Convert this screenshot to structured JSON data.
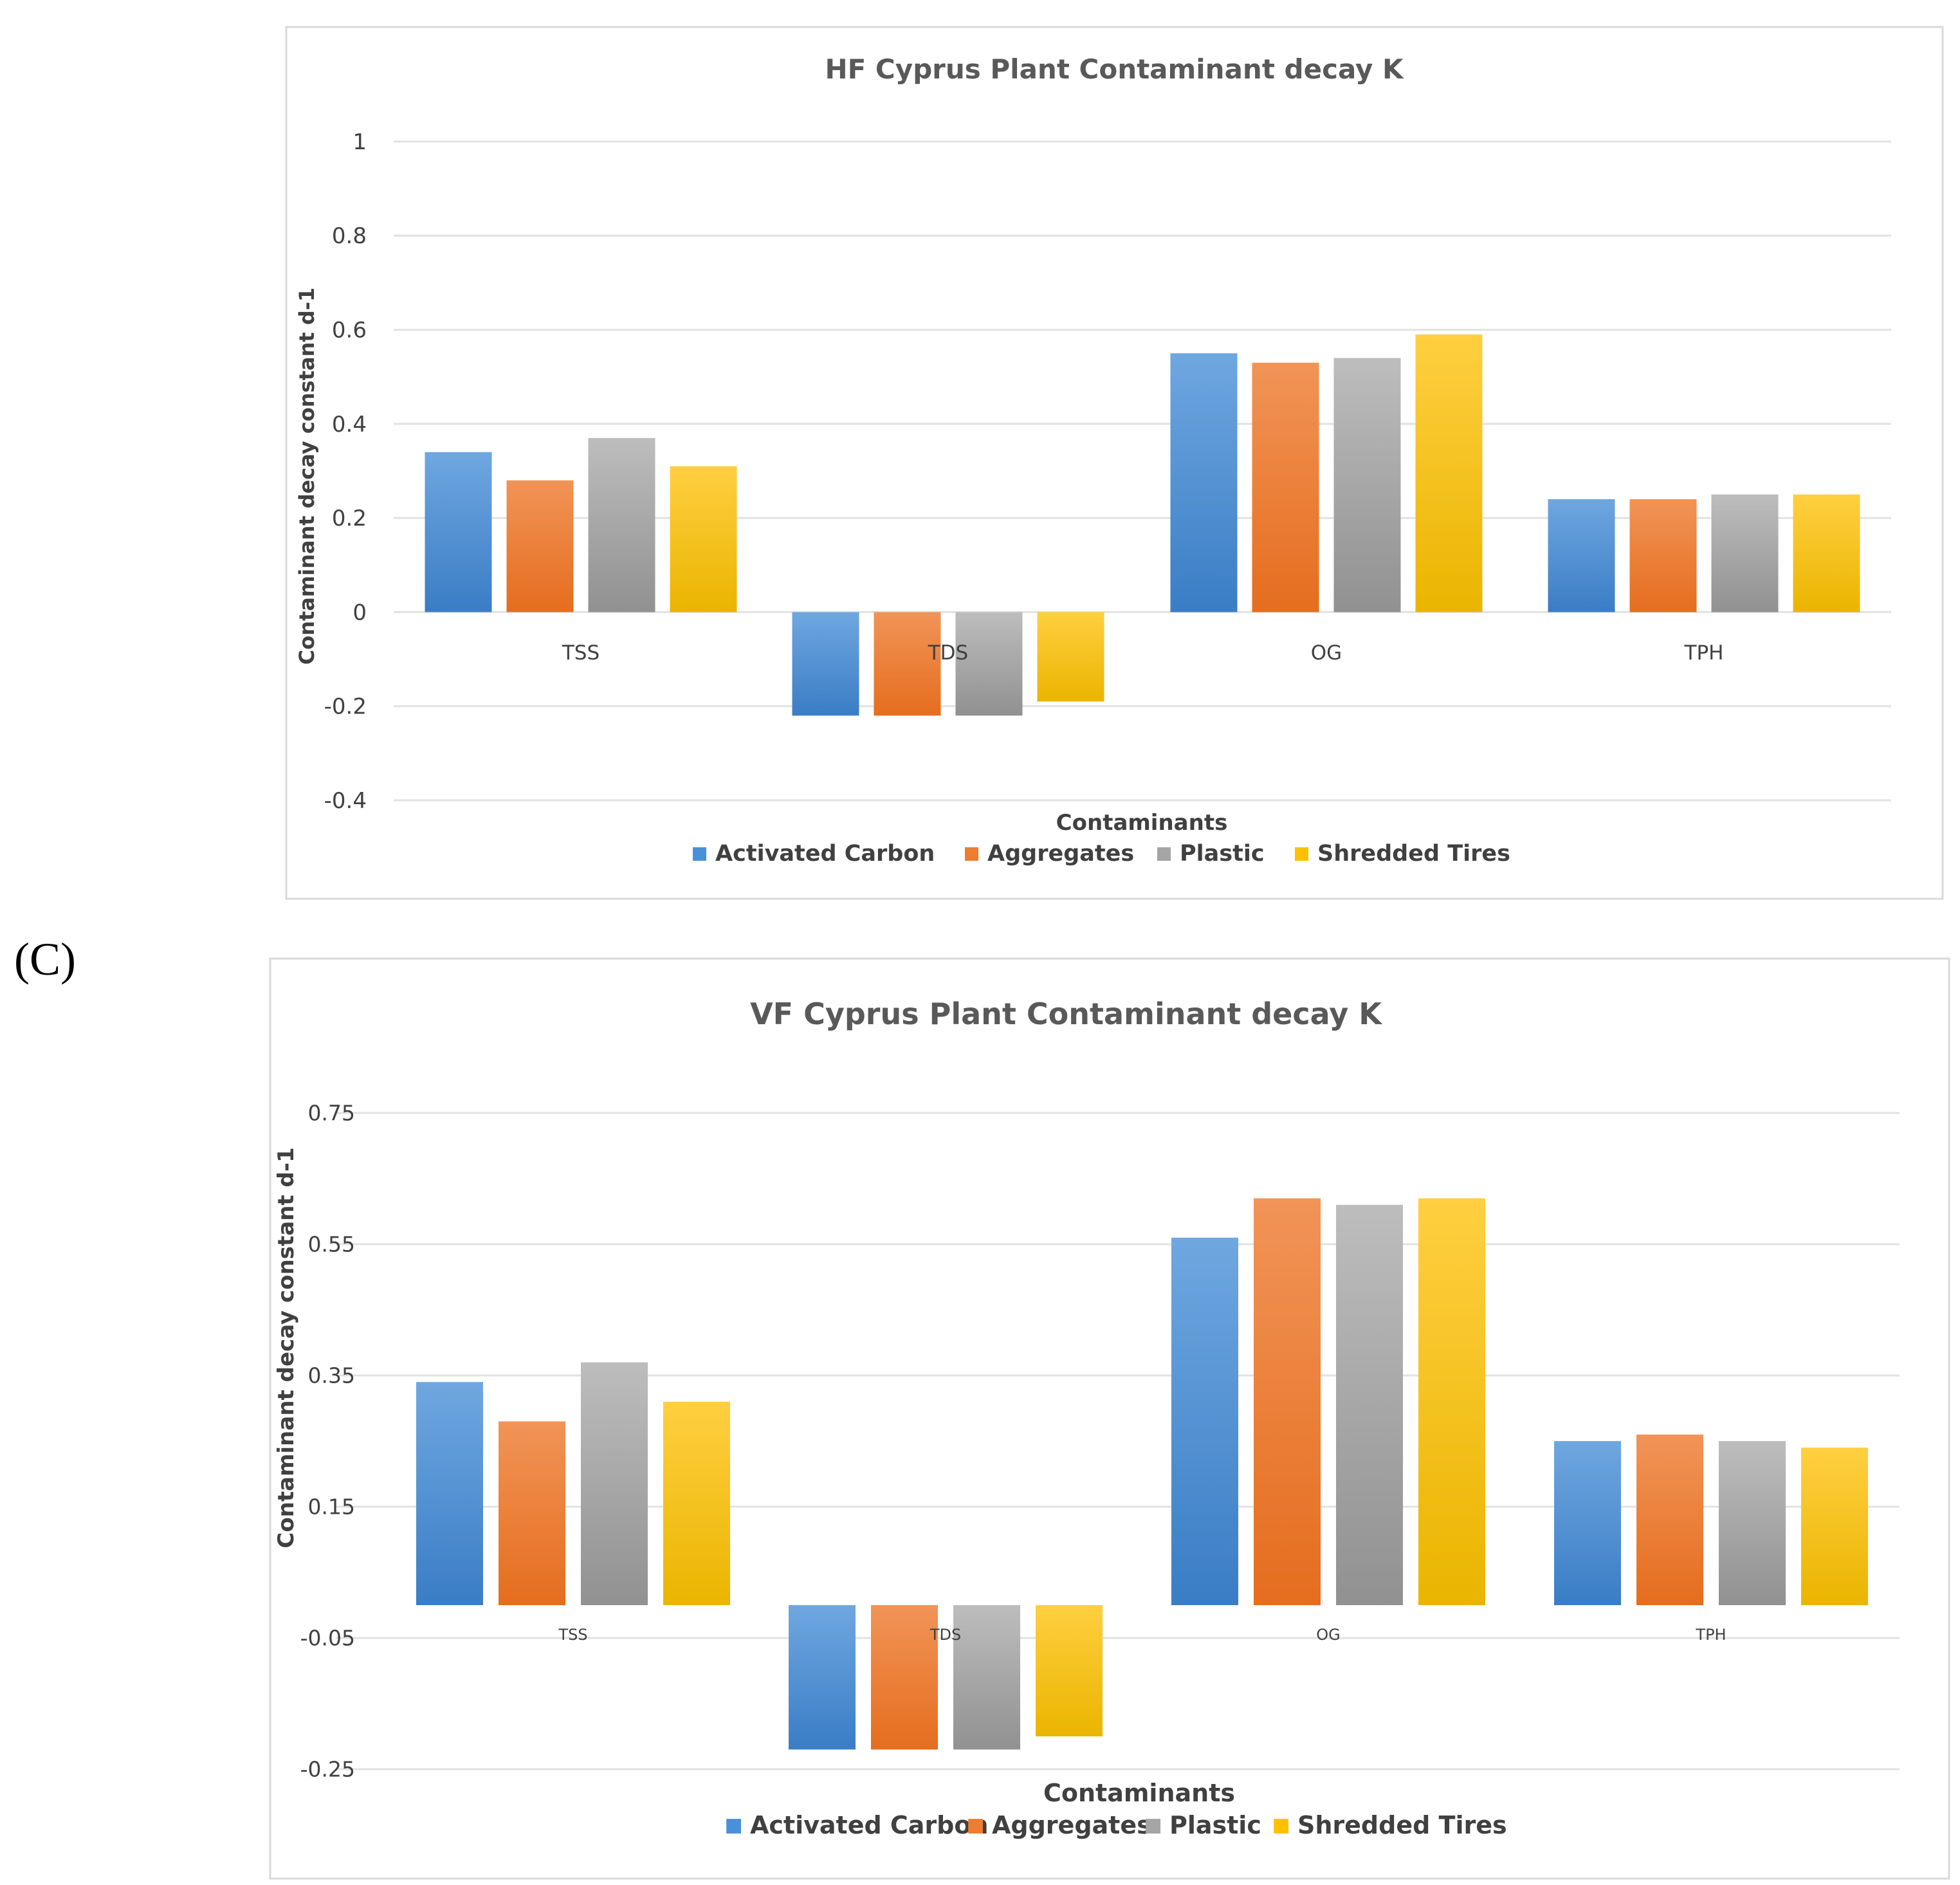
{
  "panel_label": "(C)",
  "chart_data": [
    {
      "type": "bar",
      "title": "HF Cyprus Plant Contaminant decay  K",
      "xlabel": "Contaminants",
      "ylabel": "Contaminant  decay constant d-1",
      "categories": [
        "TSS",
        "TDS",
        "OG",
        "TPH"
      ],
      "yticks": [
        "1",
        "0.8",
        "0.6",
        "0.4",
        "0.2",
        "0",
        "-0.2",
        "-0.4"
      ],
      "ytick_values": [
        1,
        0.8,
        0.6,
        0.4,
        0.2,
        0,
        -0.2,
        -0.4
      ],
      "ylim": [
        -0.4,
        1
      ],
      "series": [
        {
          "name": "Activated Carbon",
          "values": [
            0.34,
            -0.22,
            0.55,
            0.24
          ]
        },
        {
          "name": "Aggregates",
          "values": [
            0.28,
            -0.22,
            0.53,
            0.24
          ]
        },
        {
          "name": "Plastic",
          "values": [
            0.37,
            -0.22,
            0.54,
            0.25
          ]
        },
        {
          "name": "Shredded Tires",
          "values": [
            0.31,
            -0.19,
            0.59,
            0.25
          ]
        }
      ],
      "grid": true,
      "legend": "bottom"
    },
    {
      "type": "bar",
      "title": "VF Cyprus Plant Contaminant decay  K",
      "xlabel": "Contaminants",
      "ylabel": "Contaminant  decay constant d-1",
      "categories": [
        "TSS",
        "TDS",
        "OG",
        "TPH"
      ],
      "yticks": [
        "0.75",
        "0.55",
        "0.35",
        "0.15",
        "-0.05",
        "-0.25"
      ],
      "ytick_values": [
        0.75,
        0.55,
        0.35,
        0.15,
        -0.05,
        -0.25
      ],
      "ylim": [
        -0.25,
        0.75
      ],
      "series": [
        {
          "name": "Activated Carbon",
          "values": [
            0.34,
            -0.22,
            0.56,
            0.25
          ]
        },
        {
          "name": "Aggregates",
          "values": [
            0.28,
            -0.22,
            0.62,
            0.26
          ]
        },
        {
          "name": "Plastic",
          "values": [
            0.37,
            -0.22,
            0.61,
            0.25
          ]
        },
        {
          "name": "Shredded Tires",
          "values": [
            0.31,
            -0.2,
            0.62,
            0.24
          ]
        }
      ],
      "grid": true,
      "legend": "bottom"
    }
  ],
  "colors": {
    "series": [
      "#4a90d9",
      "#ed7d31",
      "#a5a5a5",
      "#ffc000"
    ],
    "series_light": [
      "#6fa7e0",
      "#f19457",
      "#bdbdbd",
      "#ffcf40"
    ],
    "series_dark": [
      "#3a7dc5",
      "#e56d1e",
      "#919191",
      "#eab500"
    ],
    "grid": "#e2e2e2",
    "frame": "#d9d9d9"
  }
}
